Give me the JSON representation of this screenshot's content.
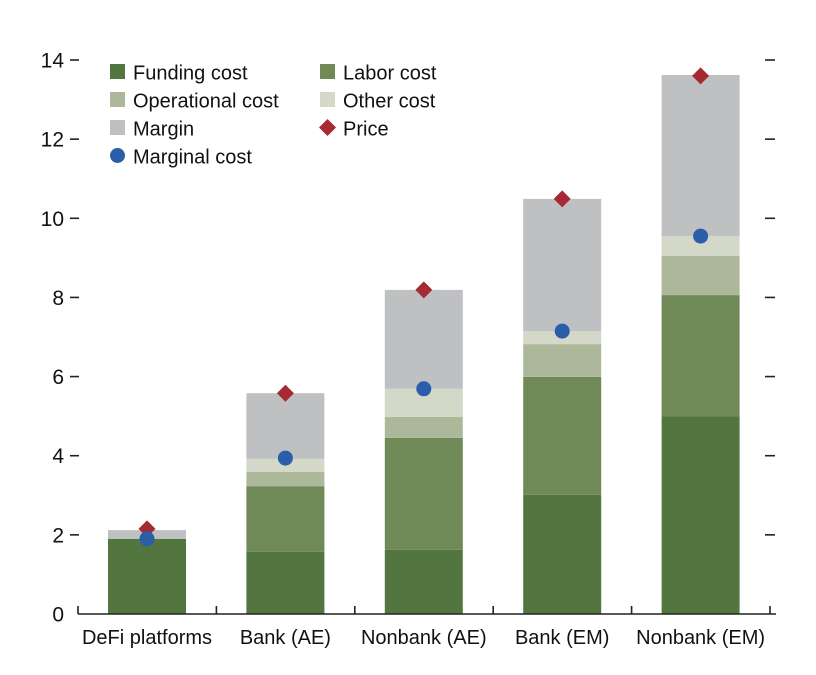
{
  "chart_data": {
    "type": "bar",
    "stacked": true,
    "title": "",
    "xlabel": "",
    "ylabel": "",
    "ylim": [
      0,
      14
    ],
    "yticks": [
      0,
      2,
      4,
      6,
      8,
      10,
      12,
      14
    ],
    "ytick_labels": [
      "0",
      "2",
      "4",
      "6",
      "8",
      "10",
      "12",
      "14"
    ],
    "right_axis_ticks_unlabeled": true,
    "grid": false,
    "legend_position": "top-left",
    "categories": [
      "DeFi platforms",
      "Bank (AE)",
      "Nonbank (AE)",
      "Bank (EM)",
      "Nonbank (EM)"
    ],
    "series": [
      {
        "name": "Funding cost",
        "kind": "bar",
        "color": "#537641",
        "values": [
          1.9,
          1.57,
          1.62,
          3.01,
          5.0
        ]
      },
      {
        "name": "Labor cost",
        "kind": "bar",
        "color": "#6f8957",
        "values": [
          0.0,
          1.66,
          2.83,
          2.98,
          3.06
        ]
      },
      {
        "name": "Operational cost",
        "kind": "bar",
        "color": "#adb89b",
        "values": [
          0.0,
          0.36,
          0.53,
          0.83,
          0.99
        ]
      },
      {
        "name": "Other cost",
        "kind": "bar",
        "color": "#d3d8c9",
        "values": [
          0.0,
          0.33,
          0.71,
          0.33,
          0.5
        ]
      },
      {
        "name": "Margin",
        "kind": "bar",
        "color": "#bfc0c2",
        "values": [
          0.22,
          1.66,
          2.5,
          3.34,
          4.07
        ]
      },
      {
        "name": "Price",
        "kind": "marker",
        "marker": "diamond",
        "color": "#a52a33",
        "values": [
          2.15,
          5.58,
          8.19,
          10.49,
          13.6
        ]
      },
      {
        "name": "Marginal cost",
        "kind": "marker",
        "marker": "circle",
        "color": "#2a5ea8",
        "values": [
          1.9,
          3.94,
          5.69,
          7.15,
          9.55
        ]
      }
    ],
    "legend": [
      {
        "label": "Funding cost",
        "swatch": "square",
        "color": "#537641"
      },
      {
        "label": "Labor cost",
        "swatch": "square",
        "color": "#6f8957"
      },
      {
        "label": "Operational cost",
        "swatch": "square",
        "color": "#adb89b"
      },
      {
        "label": "Other cost",
        "swatch": "square",
        "color": "#d3d8c9"
      },
      {
        "label": "Margin",
        "swatch": "square",
        "color": "#bfc0c2"
      },
      {
        "label": "Price",
        "swatch": "diamond",
        "color": "#a52a33"
      },
      {
        "label": "Marginal cost",
        "swatch": "circle",
        "color": "#2a5ea8"
      }
    ]
  }
}
